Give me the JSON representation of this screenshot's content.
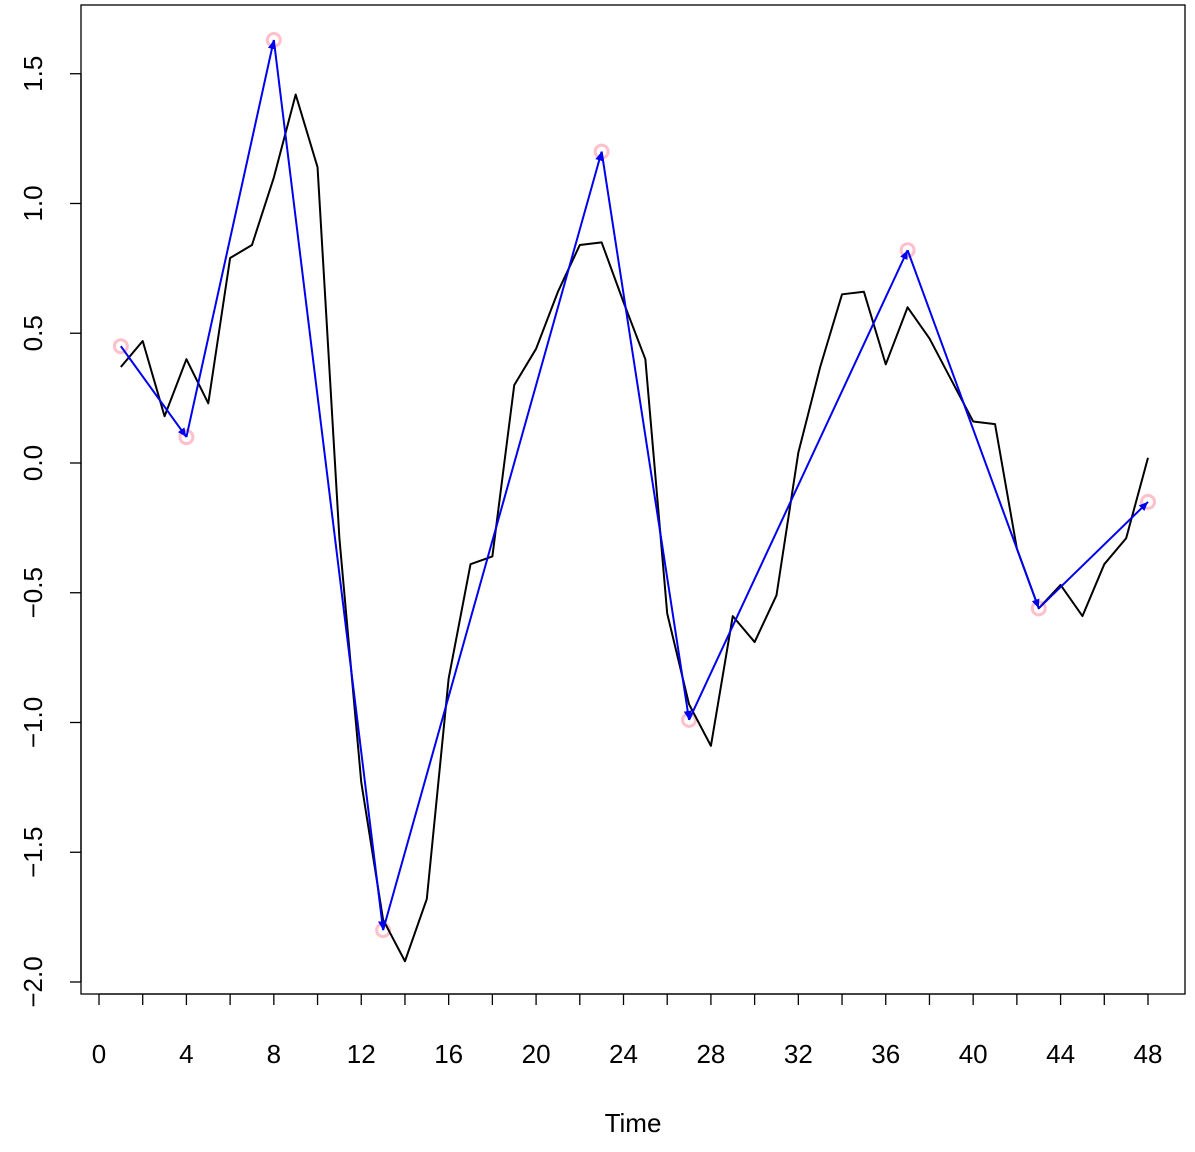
{
  "chart_data": {
    "type": "line",
    "title": "",
    "xlabel": "Time",
    "ylabel": "",
    "xlim": [
      0,
      48
    ],
    "ylim": [
      -2.0,
      1.65
    ],
    "x_ticks": [
      0,
      4,
      8,
      12,
      16,
      20,
      24,
      28,
      32,
      36,
      40,
      44,
      48
    ],
    "x_tick_labels": [
      "0",
      "4",
      "8",
      "12",
      "16",
      "20",
      "24",
      "28",
      "32",
      "36",
      "40",
      "44",
      "48"
    ],
    "x_minor_ticks": [
      2,
      6,
      10,
      14,
      18,
      22,
      26,
      30,
      34,
      38,
      42,
      46
    ],
    "y_ticks": [
      -2.0,
      -1.5,
      -1.0,
      -0.5,
      0.0,
      0.5,
      1.0,
      1.5
    ],
    "y_tick_labels": [
      "-2.0",
      "-1.5",
      "-1.0",
      "-0.5",
      "0.0",
      "0.5",
      "1.0",
      "1.5"
    ],
    "grid": false,
    "legend": "none",
    "series": [
      {
        "color": "#000000",
        "style": "line",
        "x": [
          1,
          2,
          3,
          4,
          5,
          6,
          7,
          8,
          9,
          10,
          11,
          12,
          13,
          14,
          15,
          16,
          17,
          18,
          19,
          20,
          21,
          22,
          23,
          24,
          25,
          26,
          27,
          28,
          29,
          30,
          31,
          32,
          33,
          34,
          35,
          36,
          37,
          38,
          39,
          40,
          41,
          42,
          43,
          44,
          45,
          46,
          47,
          48
        ],
        "values": [
          0.37,
          0.47,
          0.18,
          0.4,
          0.23,
          0.79,
          0.84,
          1.1,
          1.42,
          1.14,
          -0.29,
          -1.23,
          -1.76,
          -1.92,
          -1.68,
          -0.83,
          -0.39,
          -0.36,
          0.3,
          0.44,
          0.66,
          0.84,
          0.85,
          0.62,
          0.4,
          -0.58,
          -0.93,
          -1.09,
          -0.59,
          -0.69,
          -0.51,
          0.04,
          0.37,
          0.65,
          0.66,
          0.38,
          0.6,
          0.48,
          0.32,
          0.16,
          0.15,
          -0.33,
          -0.56,
          -0.47,
          -0.59,
          -0.39,
          -0.29,
          0.02
        ]
      },
      {
        "color": "#0000ee",
        "style": "line-arrows",
        "x": [
          1,
          4,
          8,
          13,
          23,
          27,
          37,
          43,
          48
        ],
        "values": [
          0.45,
          0.1,
          1.63,
          -1.8,
          1.2,
          -0.99,
          0.82,
          -0.56,
          -0.15
        ]
      },
      {
        "color": "#ffc0cb",
        "style": "points",
        "x": [
          1,
          4,
          8,
          13,
          23,
          27,
          37,
          43,
          48
        ],
        "values": [
          0.45,
          0.1,
          1.63,
          -1.8,
          1.2,
          -0.99,
          0.82,
          -0.56,
          -0.15
        ]
      }
    ]
  }
}
